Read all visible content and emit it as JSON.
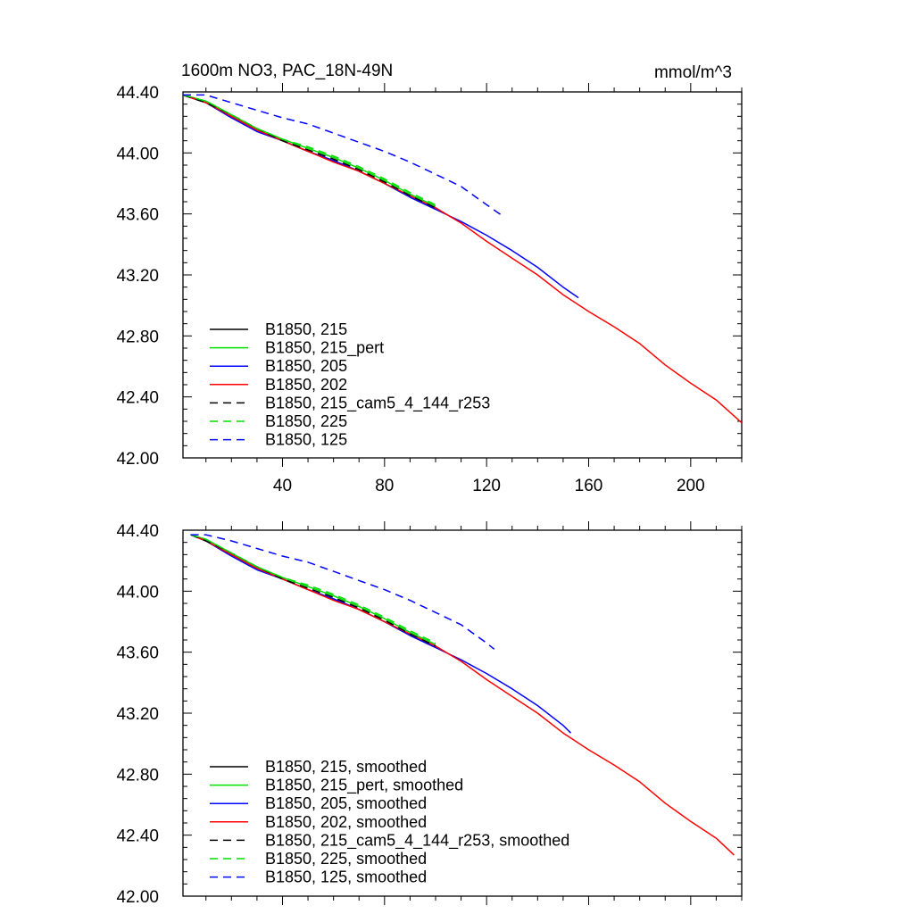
{
  "title": "1600m NO3, PAC_18N-49N",
  "units": "mmol/m^3",
  "colors": {
    "black": "#000000",
    "green": "#00e000",
    "blue": "#0000ff",
    "red": "#ff0000"
  },
  "chart_data": [
    {
      "type": "line",
      "xlim": [
        1,
        220
      ],
      "ylim": [
        42.0,
        44.4
      ],
      "x_ticks": [
        40,
        80,
        120,
        160,
        200
      ],
      "x_tick_labels": [
        "40",
        "80",
        "120",
        "160",
        "200"
      ],
      "y_ticks": [
        42.0,
        42.4,
        42.8,
        43.2,
        43.6,
        44.0,
        44.4
      ],
      "y_tick_labels": [
        "42.00",
        "42.40",
        "42.80",
        "43.20",
        "43.60",
        "44.00",
        "44.40"
      ],
      "legend_position": "bottom-left",
      "series": [
        {
          "name": "B1850, 215",
          "color": "#000000",
          "dash": false,
          "x": [
            1,
            10,
            20,
            30,
            40,
            50,
            60,
            70,
            80,
            90,
            100
          ],
          "y": [
            44.38,
            44.33,
            44.24,
            44.15,
            44.08,
            44.01,
            43.95,
            43.88,
            43.8,
            43.71,
            43.63
          ]
        },
        {
          "name": "B1850, 215_pert",
          "color": "#00e000",
          "dash": false,
          "x": [
            1,
            10,
            20,
            30,
            40,
            50,
            60,
            70,
            80,
            90,
            100
          ],
          "y": [
            44.38,
            44.34,
            44.25,
            44.16,
            44.09,
            44.03,
            43.97,
            43.9,
            43.82,
            43.73,
            43.65
          ]
        },
        {
          "name": "B1850, 205",
          "color": "#0000ff",
          "dash": false,
          "x": [
            1,
            10,
            20,
            30,
            40,
            50,
            60,
            70,
            80,
            90,
            100,
            110,
            120,
            130,
            140,
            150,
            156
          ],
          "y": [
            44.38,
            44.33,
            44.23,
            44.14,
            44.08,
            44.01,
            43.95,
            43.88,
            43.8,
            43.71,
            43.63,
            43.55,
            43.46,
            43.36,
            43.25,
            43.12,
            43.05
          ]
        },
        {
          "name": "B1850, 202",
          "color": "#ff0000",
          "dash": false,
          "x": [
            1,
            10,
            20,
            30,
            40,
            50,
            60,
            70,
            80,
            90,
            100,
            110,
            120,
            130,
            140,
            150,
            160,
            170,
            180,
            190,
            200,
            210,
            220
          ],
          "y": [
            44.38,
            44.33,
            44.24,
            44.15,
            44.08,
            44.01,
            43.94,
            43.88,
            43.8,
            43.72,
            43.64,
            43.54,
            43.42,
            43.31,
            43.2,
            43.07,
            42.96,
            42.86,
            42.75,
            42.61,
            42.49,
            42.38,
            42.23
          ]
        },
        {
          "name": "B1850, 215_cam5_4_144_r253",
          "color": "#000000",
          "dash": true,
          "x": [
            1,
            10,
            20,
            30,
            40,
            50,
            60,
            70,
            80,
            90,
            100
          ],
          "y": [
            44.38,
            44.33,
            44.25,
            44.16,
            44.08,
            44.02,
            43.96,
            43.89,
            43.81,
            43.72,
            43.64
          ]
        },
        {
          "name": "B1850, 225",
          "color": "#00e000",
          "dash": true,
          "x": [
            1,
            10,
            20,
            30,
            40,
            50,
            60,
            70,
            80,
            90,
            100
          ],
          "y": [
            44.38,
            44.34,
            44.25,
            44.16,
            44.09,
            44.04,
            43.98,
            43.91,
            43.83,
            43.74,
            43.66
          ]
        },
        {
          "name": "B1850, 125",
          "color": "#0000ff",
          "dash": true,
          "x": [
            1,
            10,
            20,
            30,
            40,
            50,
            60,
            70,
            80,
            90,
            100,
            110,
            120,
            126
          ],
          "y": [
            44.38,
            44.38,
            44.33,
            44.28,
            44.23,
            44.19,
            44.13,
            44.07,
            44.01,
            43.94,
            43.86,
            43.78,
            43.66,
            43.59
          ]
        }
      ]
    },
    {
      "type": "line",
      "xlim": [
        1,
        220
      ],
      "ylim": [
        42.0,
        44.4
      ],
      "x_ticks": [
        40,
        80,
        120,
        160,
        200
      ],
      "x_tick_labels": [],
      "y_ticks": [
        42.0,
        42.4,
        42.8,
        43.2,
        43.6,
        44.0,
        44.4
      ],
      "y_tick_labels": [
        "42.00",
        "42.40",
        "42.80",
        "43.20",
        "43.60",
        "44.00",
        "44.40"
      ],
      "legend_position": "bottom-left",
      "series": [
        {
          "name": "B1850, 215, smoothed",
          "color": "#000000",
          "dash": false,
          "x": [
            4,
            10,
            20,
            30,
            40,
            50,
            60,
            70,
            80,
            90,
            100
          ],
          "y": [
            44.37,
            44.33,
            44.24,
            44.15,
            44.08,
            44.01,
            43.95,
            43.88,
            43.8,
            43.71,
            43.63
          ]
        },
        {
          "name": "B1850, 215_pert, smoothed",
          "color": "#00e000",
          "dash": false,
          "x": [
            4,
            10,
            20,
            30,
            40,
            50,
            60,
            70,
            80,
            90,
            100
          ],
          "y": [
            44.37,
            44.34,
            44.25,
            44.16,
            44.09,
            44.03,
            43.97,
            43.9,
            43.82,
            43.73,
            43.65
          ]
        },
        {
          "name": "B1850, 205, smoothed",
          "color": "#0000ff",
          "dash": false,
          "x": [
            4,
            10,
            20,
            30,
            40,
            50,
            60,
            70,
            80,
            90,
            100,
            110,
            120,
            130,
            140,
            150,
            153
          ],
          "y": [
            44.37,
            44.33,
            44.23,
            44.14,
            44.08,
            44.01,
            43.95,
            43.88,
            43.8,
            43.71,
            43.63,
            43.55,
            43.46,
            43.36,
            43.25,
            43.12,
            43.07
          ]
        },
        {
          "name": "B1850, 202, smoothed",
          "color": "#ff0000",
          "dash": false,
          "x": [
            4,
            10,
            20,
            30,
            40,
            50,
            60,
            70,
            80,
            90,
            100,
            110,
            120,
            130,
            140,
            150,
            160,
            170,
            180,
            190,
            200,
            210,
            217
          ],
          "y": [
            44.37,
            44.33,
            44.24,
            44.15,
            44.08,
            44.01,
            43.94,
            43.88,
            43.8,
            43.72,
            43.64,
            43.54,
            43.42,
            43.31,
            43.2,
            43.07,
            42.96,
            42.86,
            42.75,
            42.61,
            42.49,
            42.38,
            42.27
          ]
        },
        {
          "name": "B1850, 215_cam5_4_144_r253, smoothed",
          "color": "#000000",
          "dash": true,
          "x": [
            4,
            10,
            20,
            30,
            40,
            50,
            60,
            70,
            80,
            90,
            100
          ],
          "y": [
            44.37,
            44.33,
            44.25,
            44.16,
            44.08,
            44.02,
            43.96,
            43.89,
            43.81,
            43.72,
            43.64
          ]
        },
        {
          "name": "B1850, 225, smoothed",
          "color": "#00e000",
          "dash": true,
          "x": [
            4,
            10,
            20,
            30,
            40,
            50,
            60,
            70,
            80,
            90,
            100
          ],
          "y": [
            44.37,
            44.34,
            44.25,
            44.16,
            44.09,
            44.04,
            43.98,
            43.91,
            43.83,
            43.74,
            43.66
          ]
        },
        {
          "name": "B1850, 125, smoothed",
          "color": "#0000ff",
          "dash": true,
          "x": [
            4,
            10,
            20,
            30,
            40,
            50,
            60,
            70,
            80,
            90,
            100,
            110,
            120,
            123
          ],
          "y": [
            44.37,
            44.37,
            44.33,
            44.28,
            44.23,
            44.19,
            44.13,
            44.07,
            44.01,
            43.94,
            43.86,
            43.78,
            43.66,
            43.62
          ]
        }
      ]
    }
  ]
}
